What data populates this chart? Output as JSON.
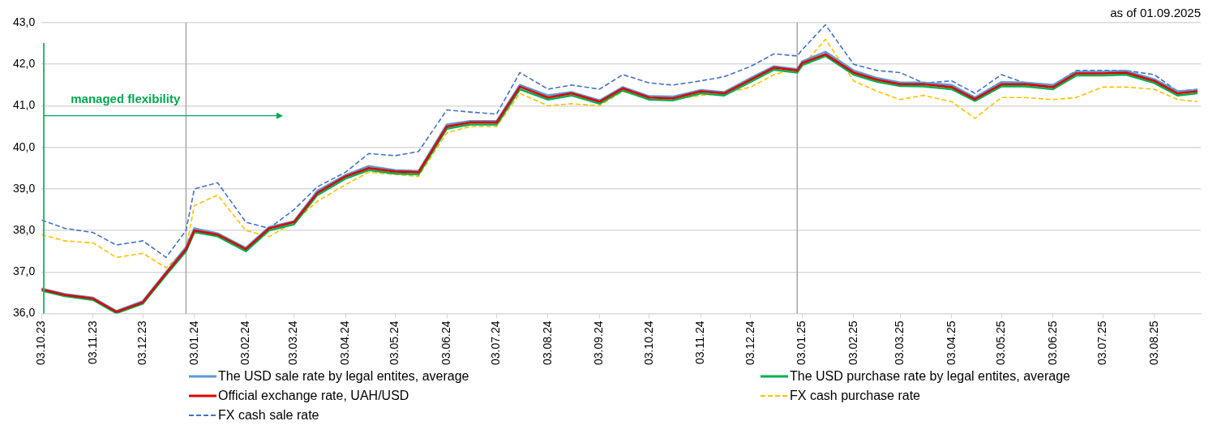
{
  "chart_data": {
    "type": "line",
    "subtitle": "as of 01.09.2025",
    "x": [
      "2023-10-03",
      "2023-10-17",
      "2023-11-03",
      "2023-11-17",
      "2023-12-03",
      "2023-12-17",
      "2023-12-29",
      "2024-01-03",
      "2024-01-17",
      "2024-02-03",
      "2024-02-17",
      "2024-03-03",
      "2024-03-17",
      "2024-04-03",
      "2024-04-17",
      "2024-05-03",
      "2024-05-17",
      "2024-06-03",
      "2024-06-17",
      "2024-07-03",
      "2024-07-17",
      "2024-08-03",
      "2024-08-17",
      "2024-09-03",
      "2024-09-17",
      "2024-10-03",
      "2024-10-17",
      "2024-11-03",
      "2024-11-17",
      "2024-12-03",
      "2024-12-17",
      "2024-12-31",
      "2025-01-03",
      "2025-01-17",
      "2025-02-03",
      "2025-02-17",
      "2025-03-03",
      "2025-03-17",
      "2025-04-03",
      "2025-04-17",
      "2025-05-03",
      "2025-05-17",
      "2025-06-03",
      "2025-06-17",
      "2025-07-03",
      "2025-07-17",
      "2025-08-03",
      "2025-08-17",
      "2025-08-29"
    ],
    "series": [
      {
        "name": "The USD sale rate by legal entites, average",
        "color": "#5b9bd5",
        "line_style": "solid",
        "values": [
          36.6,
          36.47,
          36.38,
          36.06,
          36.3,
          37.0,
          37.6,
          38.05,
          37.93,
          37.58,
          38.08,
          38.22,
          38.95,
          39.33,
          39.55,
          39.45,
          39.43,
          40.55,
          40.63,
          40.63,
          41.5,
          41.25,
          41.33,
          41.13,
          41.45,
          41.23,
          41.22,
          41.38,
          41.33,
          41.67,
          41.95,
          41.88,
          42.07,
          42.3,
          41.85,
          41.67,
          41.56,
          41.56,
          41.5,
          41.2,
          41.57,
          41.56,
          41.5,
          41.82,
          41.82,
          41.84,
          41.64,
          41.35,
          41.38
        ]
      },
      {
        "name": "The USD purchase rate by legal entites, average",
        "color": "#00b050",
        "line_style": "solid",
        "values": [
          36.55,
          36.42,
          36.33,
          36.01,
          36.24,
          36.93,
          37.5,
          37.96,
          37.86,
          37.5,
          38.0,
          38.15,
          38.85,
          39.25,
          39.45,
          39.37,
          39.35,
          40.45,
          40.55,
          40.55,
          41.4,
          41.15,
          41.25,
          41.05,
          41.37,
          41.15,
          41.13,
          41.3,
          41.25,
          41.58,
          41.87,
          41.8,
          41.98,
          42.2,
          41.75,
          41.58,
          41.48,
          41.47,
          41.4,
          41.12,
          41.47,
          41.47,
          41.4,
          41.73,
          41.73,
          41.75,
          41.55,
          41.25,
          41.3
        ]
      },
      {
        "name": "Official exchange rate, UAH/USD",
        "color": "#e00000",
        "line_style": "solid",
        "values": [
          36.58,
          36.45,
          36.36,
          36.04,
          36.27,
          36.97,
          37.55,
          38.0,
          37.9,
          37.55,
          38.05,
          38.2,
          38.9,
          39.3,
          39.5,
          39.42,
          39.4,
          40.5,
          40.6,
          40.6,
          41.46,
          41.2,
          41.3,
          41.1,
          41.42,
          41.2,
          41.18,
          41.35,
          41.3,
          41.63,
          41.92,
          41.85,
          42.03,
          42.24,
          41.8,
          41.63,
          41.52,
          41.52,
          41.45,
          41.16,
          41.52,
          41.52,
          41.45,
          41.78,
          41.78,
          41.8,
          41.6,
          41.3,
          41.35
        ]
      },
      {
        "name": "FX cash purchase rate",
        "color": "#ffc000",
        "line_style": "dashed",
        "values": [
          37.9,
          37.75,
          37.7,
          37.35,
          37.45,
          37.1,
          37.55,
          38.6,
          38.85,
          38.0,
          37.85,
          38.2,
          38.7,
          39.1,
          39.4,
          39.35,
          39.3,
          40.35,
          40.5,
          40.5,
          41.3,
          41.0,
          41.05,
          41.0,
          41.35,
          41.15,
          41.15,
          41.25,
          41.3,
          41.45,
          41.75,
          41.9,
          41.95,
          42.6,
          41.6,
          41.35,
          41.15,
          41.25,
          41.1,
          40.7,
          41.2,
          41.2,
          41.15,
          41.2,
          41.45,
          41.45,
          41.4,
          41.15,
          41.1
        ]
      },
      {
        "name": "FX cash sale rate",
        "color": "#4472c4",
        "line_style": "dashed",
        "values": [
          38.25,
          38.05,
          37.95,
          37.65,
          37.75,
          37.35,
          38.0,
          39.0,
          39.15,
          38.2,
          38.05,
          38.5,
          39.05,
          39.4,
          39.85,
          39.8,
          39.9,
          40.9,
          40.85,
          40.8,
          41.8,
          41.4,
          41.5,
          41.4,
          41.75,
          41.55,
          41.5,
          41.6,
          41.7,
          41.95,
          42.25,
          42.2,
          42.35,
          42.95,
          42.0,
          41.85,
          41.8,
          41.55,
          41.6,
          41.3,
          41.75,
          41.55,
          41.5,
          41.85,
          41.85,
          41.85,
          41.75,
          41.35,
          41.4
        ]
      }
    ],
    "xlim": [
      "2023-10-03",
      "2025-08-31"
    ],
    "xticks": [
      {
        "value": "2023-10-03",
        "label": "03.10.23"
      },
      {
        "value": "2023-11-03",
        "label": "03.11.23"
      },
      {
        "value": "2023-12-03",
        "label": "03.12.23"
      },
      {
        "value": "2024-01-03",
        "label": "03.01.24"
      },
      {
        "value": "2024-02-03",
        "label": "03.02.24"
      },
      {
        "value": "2024-03-03",
        "label": "03.03.24"
      },
      {
        "value": "2024-04-03",
        "label": "03.04.24"
      },
      {
        "value": "2024-05-03",
        "label": "03.05.24"
      },
      {
        "value": "2024-06-03",
        "label": "03.06.24"
      },
      {
        "value": "2024-07-03",
        "label": "03.07.24"
      },
      {
        "value": "2024-08-03",
        "label": "03.08.24"
      },
      {
        "value": "2024-09-03",
        "label": "03.09.24"
      },
      {
        "value": "2024-10-03",
        "label": "03.10.24"
      },
      {
        "value": "2024-11-03",
        "label": "03.11.24"
      },
      {
        "value": "2024-12-03",
        "label": "03.12.24"
      },
      {
        "value": "2025-01-03",
        "label": "03.01.25"
      },
      {
        "value": "2025-02-03",
        "label": "03.02.25"
      },
      {
        "value": "2025-03-03",
        "label": "03.03.25"
      },
      {
        "value": "2025-04-03",
        "label": "03.04.25"
      },
      {
        "value": "2025-05-03",
        "label": "03.05.25"
      },
      {
        "value": "2025-06-03",
        "label": "03.06.25"
      },
      {
        "value": "2025-07-03",
        "label": "03.07.25"
      },
      {
        "value": "2025-08-03",
        "label": "03.08.25"
      }
    ],
    "ylim": [
      36,
      43
    ],
    "yticks": [
      {
        "value": 36,
        "label": "36,0"
      },
      {
        "value": 37,
        "label": "37,0"
      },
      {
        "value": 38,
        "label": "38,0"
      },
      {
        "value": 39,
        "label": "39,0"
      },
      {
        "value": 40,
        "label": "40,0"
      },
      {
        "value": 41,
        "label": "41,0"
      },
      {
        "value": 42,
        "label": "42,0"
      },
      {
        "value": 43,
        "label": "43,0"
      }
    ],
    "grid": "y",
    "legend": "bottom",
    "marker": "none",
    "ref_lines": [
      {
        "axis": "x",
        "value": "2023-12-29",
        "color": "#a6a6a6"
      },
      {
        "axis": "x",
        "value": "2024-12-31",
        "color": "#a6a6a6"
      }
    ],
    "annotations": [
      "managed flexibility"
    ]
  }
}
